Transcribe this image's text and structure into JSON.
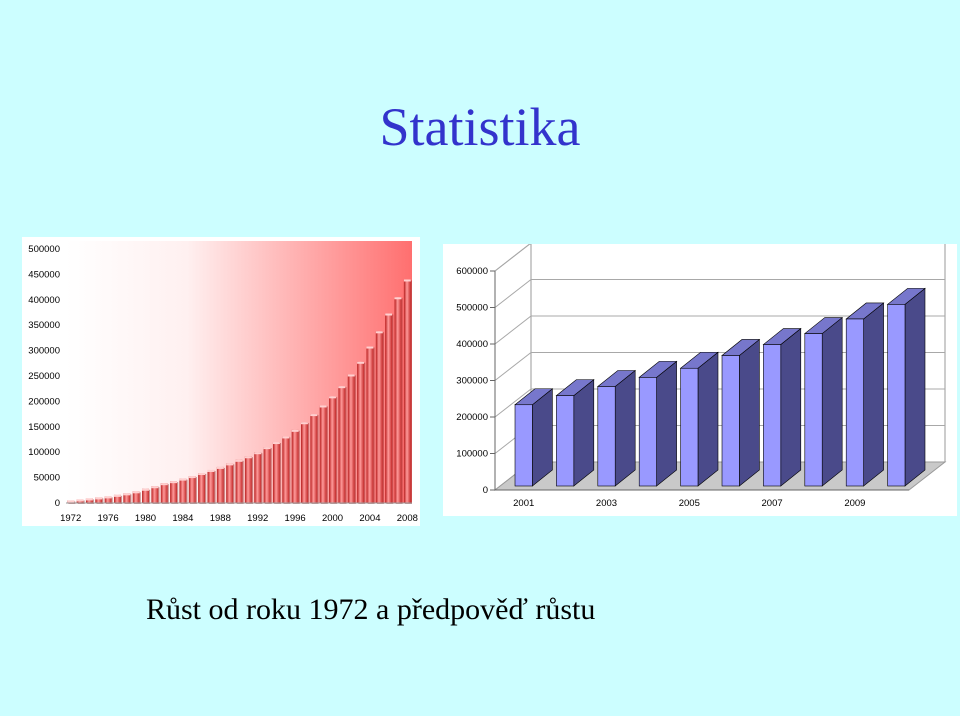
{
  "slide": {
    "title": "Statistika",
    "caption": "Růst od roku 1972 a předpověď růstu"
  },
  "colors": {
    "background": "#ccfeff",
    "title": "#3333cc",
    "chart1_bar": "#e44444",
    "chart2_bar_front": "#9999ff",
    "chart2_bar_side": "#4a4a8a",
    "chart2_bar_top": "#7777cc"
  },
  "chart_data": [
    {
      "type": "bar",
      "x": [
        1972,
        1973,
        1974,
        1975,
        1976,
        1977,
        1978,
        1979,
        1980,
        1981,
        1982,
        1983,
        1984,
        1985,
        1986,
        1987,
        1988,
        1989,
        1990,
        1991,
        1992,
        1993,
        1994,
        1995,
        1996,
        1997,
        1998,
        1999,
        2000,
        2001,
        2002,
        2003,
        2004,
        2005,
        2006,
        2007,
        2008
      ],
      "values": [
        5000,
        7000,
        9000,
        11000,
        13000,
        16000,
        19000,
        23000,
        28000,
        33000,
        39000,
        43000,
        48000,
        53000,
        59000,
        65000,
        71000,
        78000,
        85000,
        92000,
        100000,
        110000,
        120000,
        131000,
        144000,
        159000,
        175000,
        192000,
        210000,
        230000,
        253000,
        278000,
        308000,
        338000,
        373000,
        405000,
        440000
      ],
      "xticks": [
        "1972",
        "1976",
        "1980",
        "1984",
        "1988",
        "1992",
        "1996",
        "2000",
        "2004",
        "2008"
      ],
      "yticks": [
        "0",
        "50000",
        "100000",
        "150000",
        "200000",
        "250000",
        "300000",
        "350000",
        "400000",
        "450000",
        "500000"
      ],
      "ylim": [
        0,
        500000
      ],
      "grid": false,
      "background": "gradient white to red"
    },
    {
      "type": "bar",
      "style": "3d",
      "x": [
        2001,
        2002,
        2003,
        2004,
        2005,
        2006,
        2007,
        2008,
        2009,
        2010
      ],
      "values": [
        250000,
        275000,
        300000,
        325000,
        350000,
        385000,
        415000,
        445000,
        485000,
        525000
      ],
      "xticks": [
        "2001",
        "2003",
        "2005",
        "2007",
        "2009"
      ],
      "yticks": [
        "0",
        "100000",
        "200000",
        "300000",
        "400000",
        "500000",
        "600000"
      ],
      "ylim": [
        0,
        600000
      ],
      "grid": true
    }
  ]
}
